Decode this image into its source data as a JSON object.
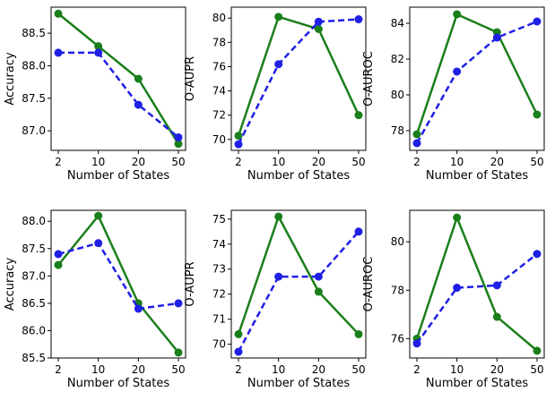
{
  "chart_data": [
    {
      "type": "line",
      "title": "",
      "categories": [
        "2",
        "10",
        "20",
        "50"
      ],
      "xlabel": "Number of States",
      "ylabel": "Accuracy",
      "ylim": [
        86.7,
        88.9
      ],
      "yticks": [
        87.0,
        87.5,
        88.0,
        88.5
      ],
      "yticklabels": [
        "87.0",
        "87.5",
        "88.0",
        "88.5"
      ],
      "series": [
        {
          "name": "green-solid",
          "color": "#1a7f1a",
          "dash": "solid",
          "values": [
            88.8,
            88.3,
            87.8,
            86.8
          ]
        },
        {
          "name": "blue-dashed",
          "color": "#1f1fe6",
          "dash": "dashed",
          "values": [
            88.2,
            88.2,
            87.4,
            86.9
          ]
        }
      ]
    },
    {
      "type": "line",
      "title": "",
      "categories": [
        "2",
        "10",
        "20",
        "50"
      ],
      "xlabel": "Number of States",
      "ylabel": "O-AUPR",
      "ylim": [
        69.1,
        80.9
      ],
      "yticks": [
        70,
        72,
        74,
        76,
        78,
        80
      ],
      "yticklabels": [
        "70",
        "72",
        "74",
        "76",
        "78",
        "80"
      ],
      "series": [
        {
          "name": "green-solid",
          "color": "#1a7f1a",
          "dash": "solid",
          "values": [
            70.3,
            80.1,
            79.1,
            72.0
          ]
        },
        {
          "name": "blue-dashed",
          "color": "#1f1fe6",
          "dash": "dashed",
          "values": [
            69.6,
            76.2,
            79.7,
            79.9
          ]
        }
      ]
    },
    {
      "type": "line",
      "title": "",
      "categories": [
        "2",
        "10",
        "20",
        "50"
      ],
      "xlabel": "Number of States",
      "ylabel": "O-AUROC",
      "ylim": [
        76.9,
        84.9
      ],
      "yticks": [
        78,
        80,
        82,
        84
      ],
      "yticklabels": [
        "78",
        "80",
        "82",
        "84"
      ],
      "series": [
        {
          "name": "green-solid",
          "color": "#1a7f1a",
          "dash": "solid",
          "values": [
            77.8,
            84.5,
            83.5,
            78.9
          ]
        },
        {
          "name": "blue-dashed",
          "color": "#1f1fe6",
          "dash": "dashed",
          "values": [
            77.3,
            81.3,
            83.2,
            84.1
          ]
        }
      ]
    },
    {
      "type": "line",
      "title": "",
      "categories": [
        "2",
        "10",
        "20",
        "50"
      ],
      "xlabel": "Number of States",
      "ylabel": "Accuracy",
      "ylim": [
        85.5,
        88.2
      ],
      "yticks": [
        85.5,
        86.0,
        86.5,
        87.0,
        87.5,
        88.0
      ],
      "yticklabels": [
        "85.5",
        "86.0",
        "86.5",
        "87.0",
        "87.5",
        "88.0"
      ],
      "series": [
        {
          "name": "green-solid",
          "color": "#1a7f1a",
          "dash": "solid",
          "values": [
            87.2,
            88.1,
            86.5,
            85.6
          ]
        },
        {
          "name": "blue-dashed",
          "color": "#1f1fe6",
          "dash": "dashed",
          "values": [
            87.4,
            87.6,
            86.4,
            86.5
          ]
        }
      ]
    },
    {
      "type": "line",
      "title": "",
      "categories": [
        "2",
        "10",
        "20",
        "50"
      ],
      "xlabel": "Number of States",
      "ylabel": "O-AUPR",
      "ylim": [
        69.45,
        75.35
      ],
      "yticks": [
        70,
        71,
        72,
        73,
        74,
        75
      ],
      "yticklabels": [
        "70",
        "71",
        "72",
        "73",
        "74",
        "75"
      ],
      "series": [
        {
          "name": "green-solid",
          "color": "#1a7f1a",
          "dash": "solid",
          "values": [
            70.4,
            75.1,
            72.1,
            70.4
          ]
        },
        {
          "name": "blue-dashed",
          "color": "#1f1fe6",
          "dash": "dashed",
          "values": [
            69.7,
            72.7,
            72.7,
            74.5
          ]
        }
      ]
    },
    {
      "type": "line",
      "title": "",
      "categories": [
        "2",
        "10",
        "20",
        "50"
      ],
      "xlabel": "Number of States",
      "ylabel": "O-AUROC",
      "ylim": [
        75.2,
        81.3
      ],
      "yticks": [
        76,
        78,
        80
      ],
      "yticklabels": [
        "76",
        "78",
        "80"
      ],
      "series": [
        {
          "name": "green-solid",
          "color": "#1a7f1a",
          "dash": "solid",
          "values": [
            76.0,
            81.0,
            76.9,
            75.5
          ]
        },
        {
          "name": "blue-dashed",
          "color": "#1f1fe6",
          "dash": "dashed",
          "values": [
            75.8,
            78.1,
            78.2,
            79.5
          ]
        }
      ]
    }
  ]
}
